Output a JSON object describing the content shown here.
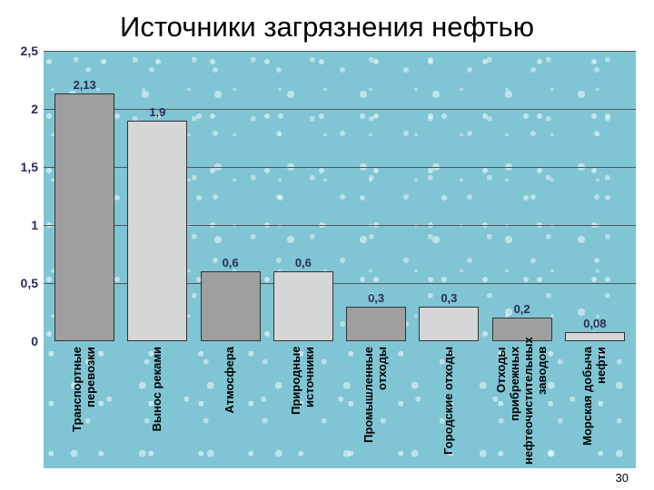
{
  "title": "Источники загрязнения нефтью",
  "page_number": "30",
  "chart": {
    "type": "bar",
    "ylim": [
      0,
      2.5
    ],
    "ytick_step": 0.5,
    "yticks": [
      "0",
      "0,5",
      "1",
      "1,5",
      "2",
      "2,5"
    ],
    "background_color": "#7fc5d4",
    "grid_color": "#555555",
    "label_fontsize": 13,
    "title_fontsize": 31,
    "tick_color": "#2b2b5b",
    "bar_width": 0.82,
    "bar_border": "#333333",
    "bars": [
      {
        "label": "Транспортные перевозки",
        "value": 2.13,
        "value_label": "2,13",
        "color": "#9f9f9f"
      },
      {
        "label": "Вынос реками",
        "value": 1.9,
        "value_label": "1,9",
        "color": "#d6d6d6"
      },
      {
        "label": "Атмосфера",
        "value": 0.6,
        "value_label": "0,6",
        "color": "#9f9f9f"
      },
      {
        "label": "Природные источники",
        "value": 0.6,
        "value_label": "0,6",
        "color": "#d6d6d6"
      },
      {
        "label": "Промышленные отходы",
        "value": 0.3,
        "value_label": "0,3",
        "color": "#9f9f9f"
      },
      {
        "label": "Городские отходы",
        "value": 0.3,
        "value_label": "0,3",
        "color": "#d6d6d6"
      },
      {
        "label": "Отходы прибрежных нефтеочистительных заводов",
        "value": 0.2,
        "value_label": "0,2",
        "color": "#9f9f9f"
      },
      {
        "label": "Морская добыча нефти",
        "value": 0.08,
        "value_label": "0,08",
        "color": "#d6d6d6"
      }
    ]
  }
}
